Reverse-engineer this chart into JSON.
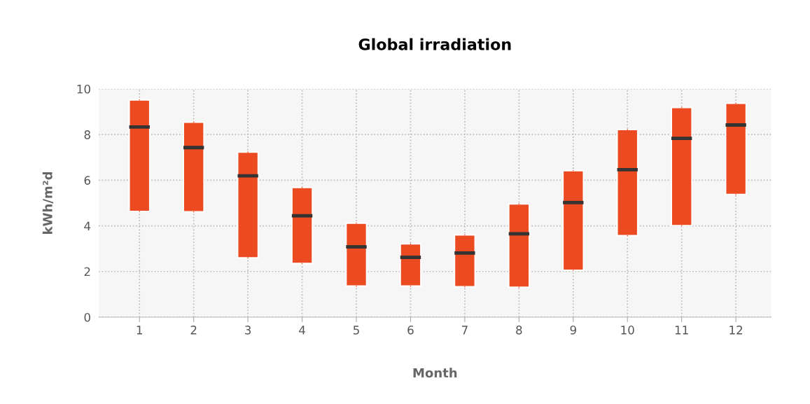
{
  "chart_data": {
    "type": "box",
    "title": "Global irradiation",
    "xlabel": "Month",
    "ylabel": "kWh/m²d",
    "categories": [
      "1",
      "2",
      "3",
      "4",
      "5",
      "6",
      "7",
      "8",
      "9",
      "10",
      "11",
      "12"
    ],
    "series": [
      {
        "color": "#ec4a20",
        "boxes": [
          {
            "low": 4.63,
            "q1": 4.63,
            "median": 8.33,
            "q3": 9.52,
            "high": 9.52
          },
          {
            "low": 4.61,
            "q1": 4.61,
            "median": 7.43,
            "q3": 8.54,
            "high": 8.54
          },
          {
            "low": 2.6,
            "q1": 2.6,
            "median": 6.19,
            "q3": 7.23,
            "high": 7.23
          },
          {
            "low": 2.35,
            "q1": 2.35,
            "median": 4.44,
            "q3": 5.68,
            "high": 5.68
          },
          {
            "low": 1.36,
            "q1": 1.36,
            "median": 3.08,
            "q3": 4.12,
            "high": 4.12
          },
          {
            "low": 1.36,
            "q1": 1.36,
            "median": 2.62,
            "q3": 3.21,
            "high": 3.21
          },
          {
            "low": 1.33,
            "q1": 1.33,
            "median": 2.81,
            "q3": 3.6,
            "high": 3.6
          },
          {
            "low": 1.31,
            "q1": 1.31,
            "median": 3.65,
            "q3": 4.96,
            "high": 4.96
          },
          {
            "low": 2.05,
            "q1": 2.05,
            "median": 5.02,
            "q3": 6.42,
            "high": 6.42
          },
          {
            "low": 3.57,
            "q1": 3.57,
            "median": 6.46,
            "q3": 8.22,
            "high": 8.22
          },
          {
            "low": 4.01,
            "q1": 4.01,
            "median": 7.83,
            "q3": 9.19,
            "high": 9.19
          },
          {
            "low": 5.37,
            "q1": 5.37,
            "median": 8.42,
            "q3": 9.37,
            "high": 9.37
          }
        ]
      }
    ],
    "ylim": [
      0,
      10
    ],
    "yticks": [
      0,
      2,
      4,
      6,
      8,
      10
    ],
    "grid": true
  }
}
